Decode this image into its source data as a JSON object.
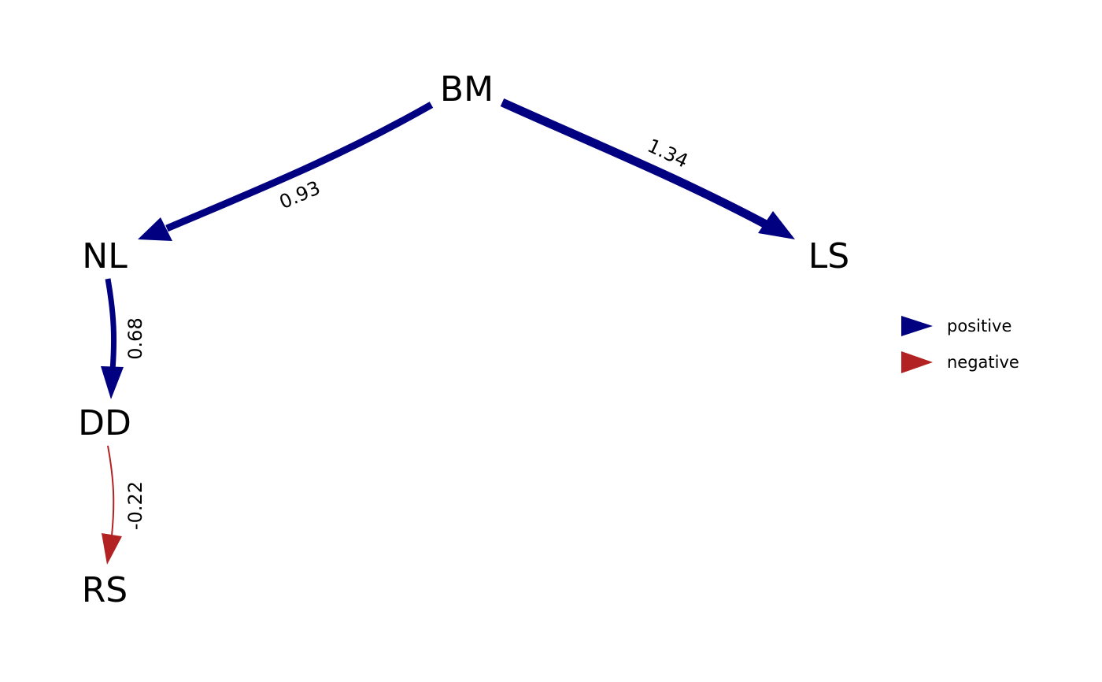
{
  "colors": {
    "positive": "#000080",
    "negative": "#B22222"
  },
  "nodes": {
    "BM": "BM",
    "NL": "NL",
    "LS": "LS",
    "DD": "DD",
    "RS": "RS"
  },
  "edges": [
    {
      "from": "BM",
      "to": "NL",
      "label": "0.93",
      "sign": "positive"
    },
    {
      "from": "BM",
      "to": "LS",
      "label": "1.34",
      "sign": "positive"
    },
    {
      "from": "NL",
      "to": "DD",
      "label": "0.68",
      "sign": "positive"
    },
    {
      "from": "DD",
      "to": "RS",
      "label": "-0.22",
      "sign": "negative"
    }
  ],
  "legend": {
    "positive": "positive",
    "negative": "negative"
  }
}
